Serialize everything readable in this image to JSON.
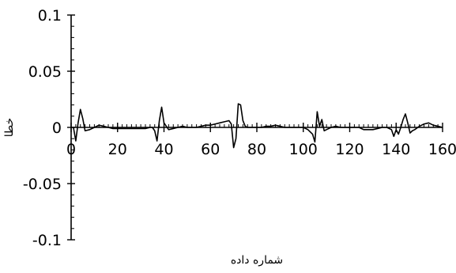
{
  "chart_data": {
    "type": "line",
    "title": "",
    "xlabel": "شماره داده",
    "ylabel": "خطا",
    "xlim": [
      0,
      160
    ],
    "ylim": [
      -0.1,
      0.1
    ],
    "x_ticks": [
      0,
      20,
      40,
      60,
      80,
      100,
      120,
      140,
      160
    ],
    "x_tick_labels": [
      "0",
      "20",
      "40",
      "60",
      "80",
      "100",
      "120",
      "140",
      "160"
    ],
    "y_ticks": [
      0.1,
      0.05,
      0,
      -0.05,
      -0.1
    ],
    "y_tick_labels": [
      "0.1",
      "0.05",
      "0",
      "-0.05",
      "-0.1"
    ],
    "x_minor_step": 2,
    "y_minor_step": 0.01,
    "grid": false,
    "legend": "none",
    "series_color": "#000000",
    "series": [
      {
        "x": [
          1,
          2,
          3,
          4,
          5,
          6,
          8,
          10,
          12,
          14,
          16,
          18,
          20,
          22,
          24,
          26,
          28,
          30,
          32,
          34,
          35,
          36,
          37,
          38,
          39,
          40,
          42,
          44,
          46,
          48,
          50,
          52,
          54,
          56,
          58,
          60,
          62,
          64,
          66,
          68,
          69,
          70,
          71,
          72,
          73,
          74,
          75,
          76,
          78,
          80,
          82,
          84,
          86,
          88,
          90,
          92,
          94,
          96,
          98,
          100,
          102,
          104,
          105,
          106,
          107,
          108,
          109,
          110,
          112,
          114,
          116,
          118,
          120,
          122,
          124,
          126,
          128,
          130,
          132,
          134,
          136,
          138,
          139,
          140,
          141,
          142,
          143,
          144,
          145,
          146,
          147,
          148,
          150,
          152,
          154,
          156,
          158,
          160
        ],
        "y": [
          0,
          -0.012,
          0.004,
          0.016,
          0.008,
          -0.003,
          -0.002,
          0,
          0.002,
          0.001,
          0,
          -0.001,
          -0.001,
          -0.001,
          -0.001,
          -0.001,
          -0.001,
          -0.001,
          -0.001,
          0,
          0,
          -0.003,
          -0.012,
          0.006,
          0.018,
          0.004,
          -0.002,
          -0.001,
          0,
          0.001,
          0,
          0,
          0,
          0.001,
          0.002,
          0.002,
          0.003,
          0.004,
          0.005,
          0.006,
          0.003,
          -0.018,
          -0.01,
          0.021,
          0.02,
          0.006,
          0.001,
          0,
          0,
          0,
          0,
          0.001,
          0.001,
          0.002,
          0.001,
          0,
          0,
          0,
          0,
          0,
          -0.002,
          -0.006,
          -0.013,
          0.014,
          0.001,
          0.007,
          -0.003,
          -0.002,
          0,
          0.001,
          0,
          0,
          0,
          0,
          0,
          -0.002,
          -0.002,
          -0.002,
          -0.001,
          0,
          0,
          -0.002,
          -0.008,
          -0.002,
          -0.006,
          0,
          0.007,
          0.012,
          0.004,
          -0.005,
          -0.003,
          -0.002,
          0.001,
          0.003,
          0.004,
          0.002,
          0.001,
          0
        ]
      }
    ]
  }
}
